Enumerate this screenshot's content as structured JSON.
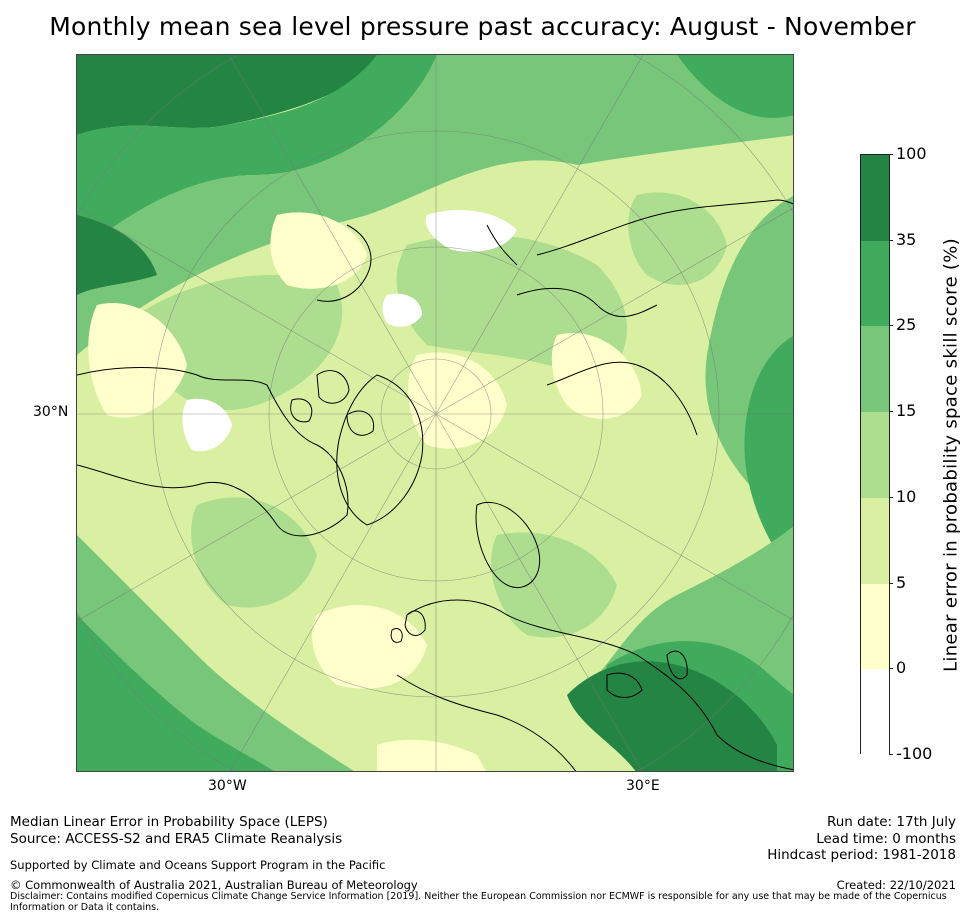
{
  "title": "Monthly mean sea level pressure past accuracy: August - November",
  "map": {
    "projection": "north-polar-stereographic",
    "lat_label": "30°N",
    "lon_labels": [
      "30°W",
      "30°E"
    ],
    "colors": {
      "ocean_bg": "#d9f0a3",
      "c0": "#ffffff",
      "c1": "#ffffcc",
      "c2": "#d9f0a3",
      "c3": "#addd8e",
      "c4": "#78c679",
      "c5": "#41ab5d",
      "c6": "#238443",
      "coast": "#000000",
      "grid": "#777777"
    }
  },
  "colorbar": {
    "label": "Linear error in probability space skill score (%)",
    "ticks": [
      "100",
      "35",
      "25",
      "15",
      "10",
      "5",
      "0",
      "-100"
    ],
    "levels": [
      {
        "from": -100,
        "to": 0,
        "color": "#ffffff"
      },
      {
        "from": 0,
        "to": 5,
        "color": "#ffffcc"
      },
      {
        "from": 5,
        "to": 10,
        "color": "#d9f0a3"
      },
      {
        "from": 10,
        "to": 15,
        "color": "#addd8e"
      },
      {
        "from": 15,
        "to": 25,
        "color": "#78c679"
      },
      {
        "from": 25,
        "to": 35,
        "color": "#41ab5d"
      },
      {
        "from": 35,
        "to": 100,
        "color": "#238443"
      }
    ]
  },
  "footer": {
    "left1": "Median Linear Error in Probability Space (LEPS)",
    "left2": "Source: ACCESS-S2 and ERA5 Climate Reanalysis",
    "supported": "Supported by Climate and Oceans Support Program in the Pacific",
    "copyright": "© Commonwealth of Australia 2021, Australian Bureau of Meteorology",
    "disclaimer1": "Disclaimer: Contains modified Copernicus Climate Change Service Information [2019]. Neither the European Commission nor ECMWF is responsible for any use that may be made of the Copernicus",
    "disclaimer2": "Information or Data it contains.",
    "run_date": "Run date: 17th July",
    "lead_time": "Lead time: 0 months",
    "hindcast": "Hindcast period: 1981-2018",
    "created": "Created: 22/10/2021"
  }
}
